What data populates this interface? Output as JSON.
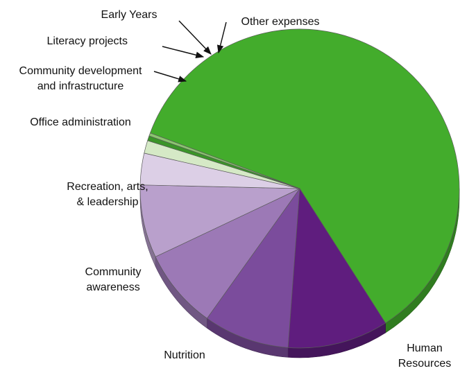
{
  "chart_data": {
    "type": "pie",
    "title": "",
    "style": "3d",
    "legend": "none",
    "slices": [
      {
        "label": "Human Resources",
        "label_lines": [
          "Human",
          "Resources"
        ],
        "value": 60.3,
        "color": "#43ac2c"
      },
      {
        "label": "Nutrition",
        "label_lines": [
          "Nutrition"
        ],
        "value": 10.2,
        "color": "#5f1d7e"
      },
      {
        "label": "Community awareness",
        "label_lines": [
          "Community",
          "awareness"
        ],
        "value": 8.7,
        "color": "#7b4c9c"
      },
      {
        "label": "Recreation, arts, & leadership",
        "label_lines": [
          "Recreation, arts,",
          "& leadership"
        ],
        "value": 8.1,
        "color": "#9c79b6"
      },
      {
        "label": "Office administration",
        "label_lines": [
          "Office administration"
        ],
        "value": 7.4,
        "color": "#b9a0cc"
      },
      {
        "label": "Community development and infrastructure",
        "label_lines": [
          "Community development",
          "and infrastructure"
        ],
        "value": 3.2,
        "color": "#dccfe6"
      },
      {
        "label": "Literacy projects",
        "label_lines": [
          "Literacy projects"
        ],
        "value": 1.3,
        "color": "#d5e9c6"
      },
      {
        "label": "Early Years",
        "label_lines": [
          "Early Years"
        ],
        "value": 0.5,
        "color": "#3a9428"
      },
      {
        "label": "Other expenses",
        "label_lines": [
          "Other expenses"
        ],
        "value": 0.3,
        "color": "#8bc56f"
      }
    ]
  }
}
